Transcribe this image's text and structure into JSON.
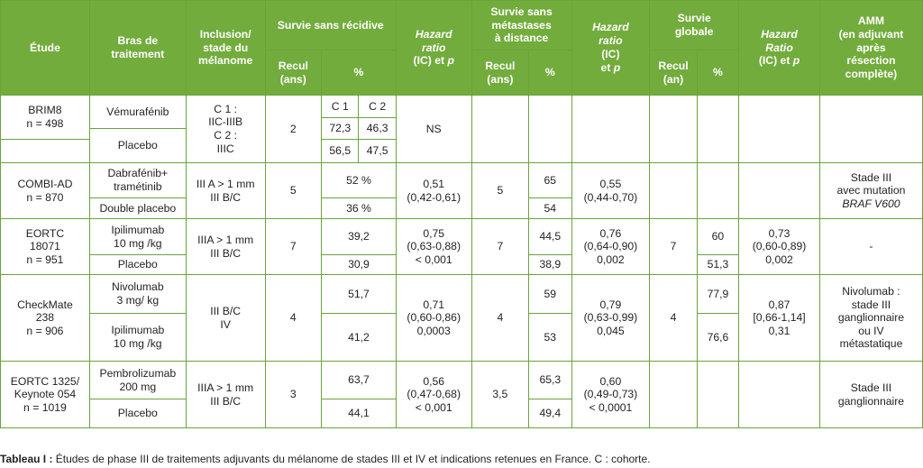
{
  "header": {
    "etude": "Étude",
    "bras": "Bras de\ntraitement",
    "inclusion": "Inclusion/\nstade du\nmélanome",
    "ssr": "Survie sans récidive",
    "hr1_a": "Hazard\nratio",
    "hr1_b": "(IC) et ",
    "hr1_p": "p",
    "ssmd": "Survie sans\nmétastases\nà distance",
    "hr2_a": "Hazard\nratio",
    "hr2_b": "(IC)\net ",
    "hr2_p": "p",
    "sg": "Survie\nglobale",
    "hr3_a": "Hazard\nRatio",
    "hr3_b": "(IC) et ",
    "hr3_p": "p",
    "amm": "AMM\n(en adjuvant\naprès\nrésection\ncomplète)",
    "recul_ans": "Recul\n(ans)",
    "pct": "%",
    "recul_ans2": "Recul\n(ans)",
    "pct2": "%",
    "recul_an": "Recul\n(an)",
    "pct3": "%"
  },
  "rows": {
    "brim8": {
      "etude": "BRIM8\nn = 498",
      "bras1": "Vémurafénib",
      "bras2": "Placebo",
      "inclusion": "C 1 :\nIIC-IIIB\nC 2 :\nIIIC",
      "recul": "2",
      "c1_label": "C 1",
      "c2_label": "C 2",
      "c1_v1": "72,3",
      "c2_v1": "46,3",
      "c1_v2": "56,5",
      "c2_v2": "47,5",
      "hr": "NS"
    },
    "combi": {
      "etude": "COMBI-AD\nn = 870",
      "bras1": "Dabrafénib+\ntramétinib",
      "bras2": "Double placebo",
      "inclusion": "III A > 1 mm\nIII B/C",
      "recul": "5",
      "pct1": "52 %",
      "pct2": "36 %",
      "hr": "0,51\n(0,42-0,61)",
      "recul2": "5",
      "mpct1": "65",
      "mpct2": "54",
      "hr2": "0,55\n(0,44-0,70)",
      "amm_a": "Stade III\navec mutation",
      "amm_b": "BRAF V600"
    },
    "eortc18071": {
      "etude": "EORTC\n18071\nn = 951",
      "bras1": "Ipilimumab\n10 mg /kg",
      "bras2": "Placebo",
      "inclusion": "IIIA > 1 mm\nIII B/C",
      "recul": "7",
      "pct1": "39,2",
      "pct2": "30,9",
      "hr": "0,75\n(0,63-0,88)\n< 0,001",
      "recul2": "7",
      "mpct1": "44,5",
      "mpct2": "38,9",
      "hr2": "0,76\n(0,64-0,90)\n0,002",
      "recul3": "7",
      "gpct1": "60",
      "gpct2": "51,3",
      "hr3": "0,73\n(0,60-0,89)\n0,002",
      "amm": "-"
    },
    "checkmate": {
      "etude": "CheckMate\n238\nn = 906",
      "bras1": "Nivolumab\n3 mg/ kg",
      "bras2": "Ipilimumab\n10 mg /kg",
      "inclusion": "III B/C\nIV",
      "recul": "4",
      "pct1": "51,7",
      "pct2": "41,2",
      "hr": "0,71\n(0,60-0,86)\n0,0003",
      "recul2": "4",
      "mpct1": "59",
      "mpct2": "53",
      "hr2": "0,79\n(0,63-0,99)\n0,045",
      "recul3": "4",
      "gpct1": "77,9",
      "gpct2": "76,6",
      "hr3": "0,87\n[0,66-1,14]\n0,31",
      "amm": "Nivolumab :\nstade III\nganglionnaire\nou IV\nmétastatique"
    },
    "eortc1325": {
      "etude": "EORTC 1325/\nKeynote 054\nn = 1019",
      "bras1": "Pembrolizumab\n200 mg",
      "bras2": "Placebo",
      "inclusion": "IIIA > 1 mm\nIII B/C",
      "recul": "3",
      "pct1": "63,7",
      "pct2": "44,1",
      "hr": "0,56\n(0,47-0,68)\n< 0,001",
      "recul2": "3,5",
      "mpct1": "65,3",
      "mpct2": "49,4",
      "hr2": "0,60\n(0,49-0,73)\n< 0,0001",
      "amm": "Stade III\nganglionnaire"
    }
  },
  "caption": {
    "label": "Tableau I :",
    "text": " Études de phase III de traitements adjuvants du mélanome de stades III et IV et indications retenues en France. C : cohorte."
  }
}
